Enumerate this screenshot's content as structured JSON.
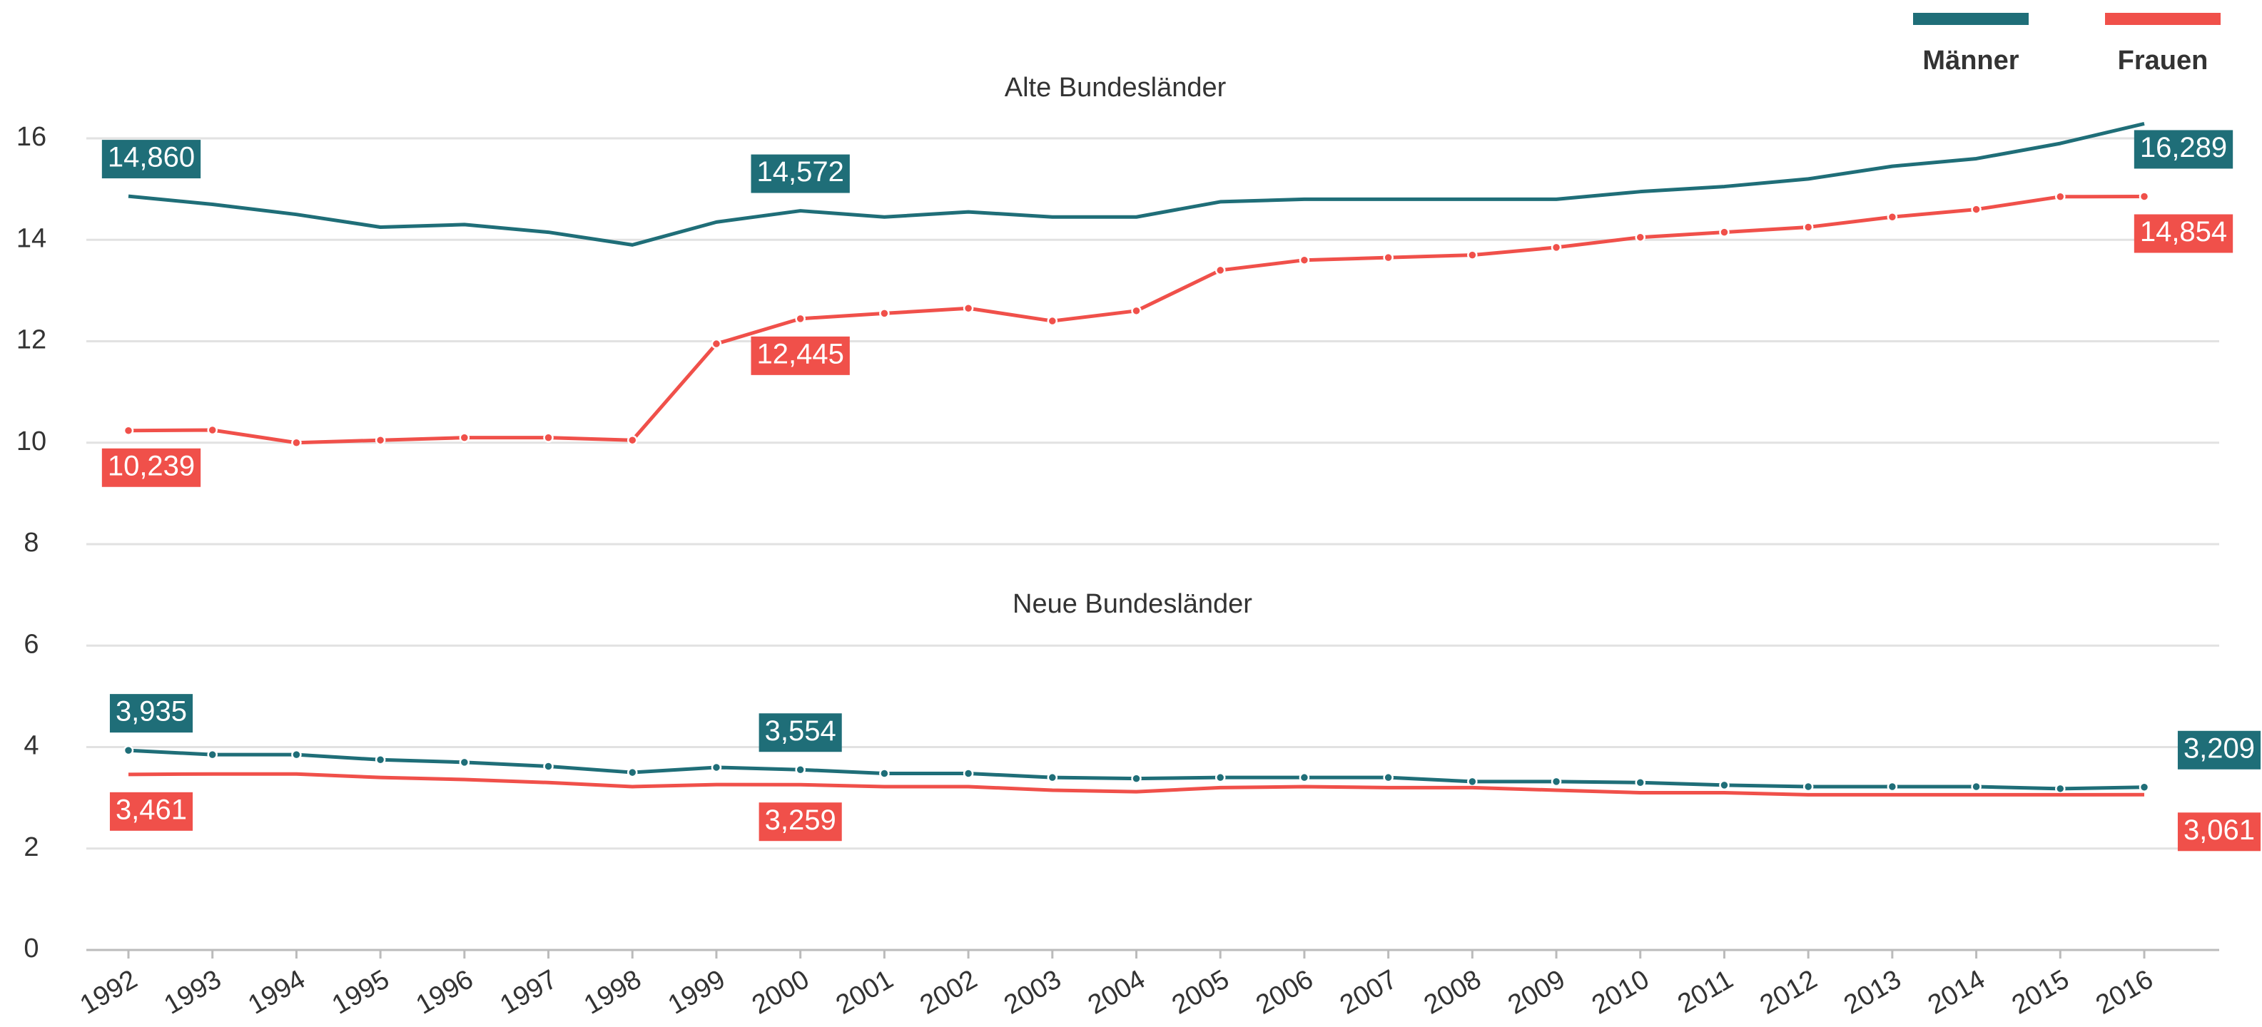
{
  "chart_data": {
    "type": "line",
    "annotations": [
      "Alte Bundesländer",
      "Neue Bundesländer"
    ],
    "categories": [
      "1992",
      "1993",
      "1994",
      "1995",
      "1996",
      "1997",
      "1998",
      "1999",
      "2000",
      "2001",
      "2002",
      "2003",
      "2004",
      "2005",
      "2006",
      "2007",
      "2008",
      "2009",
      "2010",
      "2011",
      "2012",
      "2013",
      "2014",
      "2015",
      "2016"
    ],
    "series": [
      {
        "name": "Männer",
        "color": "#1f6e78",
        "markers": false,
        "values": [
          14.86,
          14.7,
          14.5,
          14.25,
          14.3,
          14.15,
          13.9,
          14.35,
          14.572,
          14.45,
          14.55,
          14.45,
          14.45,
          14.75,
          14.8,
          14.8,
          14.8,
          14.8,
          14.95,
          15.05,
          15.2,
          15.45,
          15.6,
          15.9,
          16.289
        ],
        "value_labels": [
          "14,860",
          null,
          null,
          null,
          null,
          null,
          null,
          null,
          "14,572",
          null,
          null,
          null,
          null,
          null,
          null,
          null,
          null,
          null,
          null,
          null,
          null,
          null,
          null,
          null,
          "16,289"
        ]
      },
      {
        "name": "Frauen",
        "color": "#f0504a",
        "markers": true,
        "values": [
          10.239,
          10.25,
          10.0,
          10.05,
          10.1,
          10.1,
          10.05,
          11.95,
          12.445,
          12.55,
          12.65,
          12.4,
          12.6,
          13.4,
          13.6,
          13.65,
          13.7,
          13.85,
          14.05,
          14.15,
          14.25,
          14.45,
          14.6,
          14.85,
          14.854
        ],
        "value_labels": [
          "10,239",
          null,
          null,
          null,
          null,
          null,
          null,
          null,
          "12,445",
          null,
          null,
          null,
          null,
          null,
          null,
          null,
          null,
          null,
          null,
          null,
          null,
          null,
          null,
          null,
          "14,854"
        ]
      },
      {
        "name": "Männer",
        "color": "#1f6e78",
        "markers": true,
        "values": [
          3.935,
          3.85,
          3.85,
          3.75,
          3.7,
          3.62,
          3.5,
          3.6,
          3.554,
          3.48,
          3.48,
          3.4,
          3.38,
          3.4,
          3.4,
          3.4,
          3.32,
          3.32,
          3.3,
          3.25,
          3.22,
          3.22,
          3.22,
          3.18,
          3.209
        ],
        "value_labels": [
          "3,935",
          null,
          null,
          null,
          null,
          null,
          null,
          null,
          "3,554",
          null,
          null,
          null,
          null,
          null,
          null,
          null,
          null,
          null,
          null,
          null,
          null,
          null,
          null,
          null,
          "3,209"
        ]
      },
      {
        "name": "Frauen",
        "color": "#f0504a",
        "markers": false,
        "values": [
          3.461,
          3.47,
          3.47,
          3.4,
          3.36,
          3.3,
          3.22,
          3.26,
          3.259,
          3.22,
          3.22,
          3.15,
          3.12,
          3.2,
          3.22,
          3.2,
          3.2,
          3.15,
          3.1,
          3.1,
          3.06,
          3.06,
          3.06,
          3.06,
          3.061
        ],
        "value_labels": [
          "3,461",
          null,
          null,
          null,
          null,
          null,
          null,
          null,
          "3,259",
          null,
          null,
          null,
          null,
          null,
          null,
          null,
          null,
          null,
          null,
          null,
          null,
          null,
          null,
          null,
          "3,061"
        ]
      }
    ],
    "ylim": [
      0,
      16
    ],
    "yticks": [
      0,
      2,
      4,
      6,
      8,
      10,
      12,
      14,
      16
    ],
    "grid": true,
    "legend": "top-right"
  }
}
